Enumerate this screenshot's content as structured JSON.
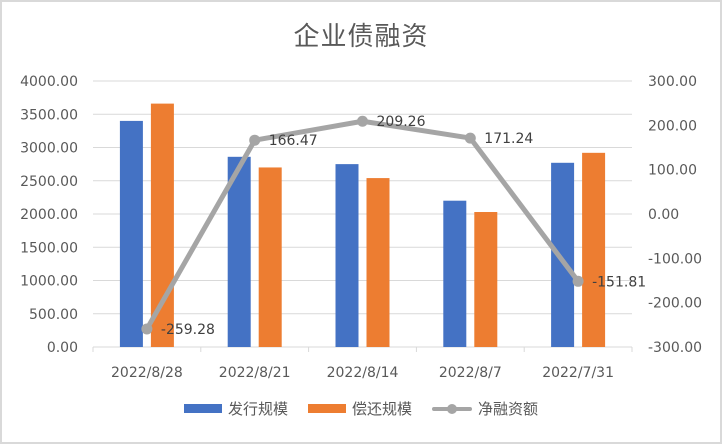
{
  "chart_data": {
    "type": "bar",
    "title": "企业债融资",
    "categories": [
      "2022/8/28",
      "2022/8/21",
      "2022/8/14",
      "2022/8/7",
      "2022/7/31"
    ],
    "series": [
      {
        "name": "发行规模",
        "type": "bar",
        "axis": "left",
        "color": "#4472c4",
        "values": [
          3400,
          2860,
          2750,
          2200,
          2770
        ]
      },
      {
        "name": "偿还规模",
        "type": "bar",
        "axis": "left",
        "color": "#ed7d31",
        "values": [
          3660,
          2700,
          2540,
          2030,
          2920
        ]
      },
      {
        "name": "净融资额",
        "type": "line",
        "axis": "right",
        "color": "#a5a5a5",
        "values": [
          -259.28,
          166.47,
          209.26,
          171.24,
          -151.81
        ],
        "labels": [
          "-259.28",
          "166.47",
          "209.26",
          "171.24",
          "-151.81"
        ]
      }
    ],
    "xlabel": "",
    "ylabel": "",
    "ylim": [
      0,
      4000
    ],
    "y2lim": [
      -300,
      300
    ],
    "yticks": [
      "0.00",
      "500.00",
      "1000.00",
      "1500.00",
      "2000.00",
      "2500.00",
      "3000.00",
      "3500.00",
      "4000.00"
    ],
    "y2ticks": [
      "-300.00",
      "-200.00",
      "-100.00",
      "0.00",
      "100.00",
      "200.00",
      "300.00"
    ],
    "grid": true,
    "legend_position": "bottom"
  },
  "legend": [
    {
      "label": "发行规模",
      "color": "#4472c4",
      "kind": "bar"
    },
    {
      "label": "偿还规模",
      "color": "#ed7d31",
      "kind": "bar"
    },
    {
      "label": "净融资额",
      "color": "#a5a5a5",
      "kind": "line"
    }
  ]
}
